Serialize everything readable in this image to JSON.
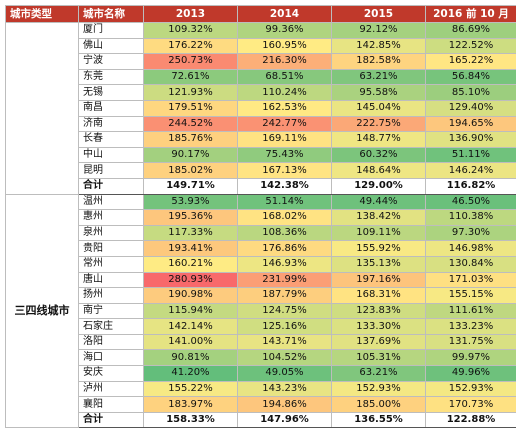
{
  "header": {
    "col_category": "城市类型",
    "col_city": "城市名称",
    "years": [
      "2013",
      "2014",
      "2015",
      "2016 前 10 月"
    ]
  },
  "scale_colors": {
    "low": "#63be7b",
    "mid": "#ffeb84",
    "high": "#f8696b"
  },
  "groups": [
    {
      "category": "",
      "rows": [
        {
          "city": "厦门",
          "values": [
            "109.32%",
            "99.36%",
            "92.12%",
            "86.69%"
          ],
          "nums": [
            109.32,
            99.36,
            92.12,
            86.69
          ]
        },
        {
          "city": "佛山",
          "values": [
            "176.22%",
            "160.95%",
            "142.85%",
            "122.52%"
          ],
          "nums": [
            176.22,
            160.95,
            142.85,
            122.52
          ]
        },
        {
          "city": "宁波",
          "values": [
            "250.73%",
            "216.30%",
            "182.58%",
            "165.22%"
          ],
          "nums": [
            250.73,
            216.3,
            182.58,
            165.22
          ]
        },
        {
          "city": "东莞",
          "values": [
            "72.61%",
            "68.51%",
            "63.21%",
            "56.84%"
          ],
          "nums": [
            72.61,
            68.51,
            63.21,
            56.84
          ]
        },
        {
          "city": "无锡",
          "values": [
            "121.93%",
            "110.24%",
            "95.58%",
            "85.10%"
          ],
          "nums": [
            121.93,
            110.24,
            95.58,
            85.1
          ]
        },
        {
          "city": "南昌",
          "values": [
            "179.51%",
            "162.53%",
            "145.04%",
            "129.40%"
          ],
          "nums": [
            179.51,
            162.53,
            145.04,
            129.4
          ]
        },
        {
          "city": "济南",
          "values": [
            "244.52%",
            "242.77%",
            "222.75%",
            "194.65%"
          ],
          "nums": [
            244.52,
            242.77,
            222.75,
            194.65
          ]
        },
        {
          "city": "长春",
          "values": [
            "185.76%",
            "169.11%",
            "148.77%",
            "136.90%"
          ],
          "nums": [
            185.76,
            169.11,
            148.77,
            136.9
          ]
        },
        {
          "city": "中山",
          "values": [
            "90.17%",
            "75.43%",
            "60.32%",
            "51.11%"
          ],
          "nums": [
            90.17,
            75.43,
            60.32,
            51.11
          ]
        },
        {
          "city": "昆明",
          "values": [
            "185.02%",
            "167.13%",
            "148.64%",
            "146.24%"
          ],
          "nums": [
            185.02,
            167.13,
            148.64,
            146.24
          ]
        }
      ],
      "total": {
        "label": "合计",
        "values": [
          "149.71%",
          "142.38%",
          "129.00%",
          "116.82%"
        ]
      }
    },
    {
      "category": "三四线城市",
      "rows": [
        {
          "city": "温州",
          "values": [
            "53.93%",
            "51.14%",
            "49.44%",
            "46.50%"
          ],
          "nums": [
            53.93,
            51.14,
            49.44,
            46.5
          ]
        },
        {
          "city": "惠州",
          "values": [
            "195.36%",
            "168.02%",
            "138.42%",
            "110.38%"
          ],
          "nums": [
            195.36,
            168.02,
            138.42,
            110.38
          ]
        },
        {
          "city": "泉州",
          "values": [
            "117.33%",
            "108.36%",
            "109.11%",
            "97.30%"
          ],
          "nums": [
            117.33,
            108.36,
            109.11,
            97.3
          ]
        },
        {
          "city": "贵阳",
          "values": [
            "193.41%",
            "176.86%",
            "155.92%",
            "146.98%"
          ],
          "nums": [
            193.41,
            176.86,
            155.92,
            146.98
          ]
        },
        {
          "city": "常州",
          "values": [
            "160.21%",
            "146.93%",
            "135.13%",
            "130.84%"
          ],
          "nums": [
            160.21,
            146.93,
            135.13,
            130.84
          ]
        },
        {
          "city": "唐山",
          "values": [
            "280.93%",
            "231.99%",
            "197.16%",
            "171.03%"
          ],
          "nums": [
            280.93,
            231.99,
            197.16,
            171.03
          ]
        },
        {
          "city": "扬州",
          "values": [
            "190.98%",
            "187.79%",
            "168.31%",
            "155.15%"
          ],
          "nums": [
            190.98,
            187.79,
            168.31,
            155.15
          ]
        },
        {
          "city": "南宁",
          "values": [
            "115.94%",
            "124.75%",
            "123.83%",
            "111.61%"
          ],
          "nums": [
            115.94,
            124.75,
            123.83,
            111.61
          ]
        },
        {
          "city": "石家庄",
          "values": [
            "142.14%",
            "125.16%",
            "133.30%",
            "133.23%"
          ],
          "nums": [
            142.14,
            125.16,
            133.3,
            133.23
          ]
        },
        {
          "city": "洛阳",
          "values": [
            "141.00%",
            "143.71%",
            "137.69%",
            "131.75%"
          ],
          "nums": [
            141.0,
            143.71,
            137.69,
            131.75
          ]
        },
        {
          "city": "海口",
          "values": [
            "90.81%",
            "104.52%",
            "105.31%",
            "99.97%"
          ],
          "nums": [
            90.81,
            104.52,
            105.31,
            99.97
          ]
        },
        {
          "city": "安庆",
          "values": [
            "41.20%",
            "49.05%",
            "63.21%",
            "49.96%"
          ],
          "nums": [
            41.2,
            49.05,
            63.21,
            49.96
          ]
        },
        {
          "city": "泸州",
          "values": [
            "155.22%",
            "143.23%",
            "152.93%",
            "152.93%"
          ],
          "nums": [
            155.22,
            143.23,
            152.93,
            152.93
          ]
        },
        {
          "city": "襄阳",
          "values": [
            "183.97%",
            "194.86%",
            "185.00%",
            "170.73%"
          ],
          "nums": [
            183.97,
            194.86,
            185.0,
            170.73
          ]
        }
      ],
      "total": {
        "label": "合计",
        "values": [
          "158.33%",
          "147.96%",
          "136.55%",
          "122.88%"
        ]
      }
    }
  ]
}
